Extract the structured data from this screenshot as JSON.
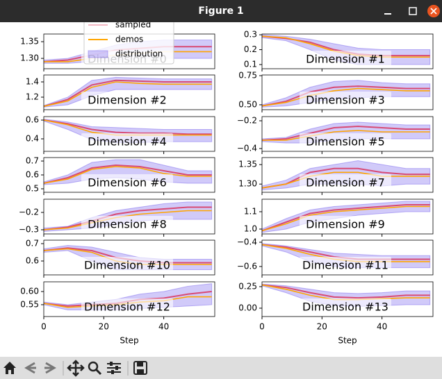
{
  "window": {
    "title": "Figure 1"
  },
  "chart_data": [
    {
      "type": "line",
      "title": "Dimension #0",
      "legend": "upper center",
      "x": [
        0,
        8,
        16,
        24,
        32,
        40,
        48,
        56
      ],
      "xlim": [
        0,
        57
      ],
      "xticks": [
        0,
        20,
        40
      ],
      "ylim": [
        1.269,
        1.373
      ],
      "yticks": [
        {
          "value": 1.3,
          "label": "1.30"
        },
        {
          "value": 1.35,
          "label": "1.35"
        }
      ],
      "series": [
        {
          "name": "sampled",
          "color": "#dc143c",
          "values": [
            1.29,
            1.295,
            1.31,
            1.325,
            1.33,
            1.335,
            1.335,
            1.335
          ]
        },
        {
          "name": "demos",
          "color": "#ffa500",
          "values": [
            1.29,
            1.29,
            1.3,
            1.31,
            1.315,
            1.32,
            1.32,
            1.32
          ]
        },
        {
          "name": "distribution",
          "color": "#7b68ee",
          "low": [
            1.285,
            1.285,
            1.29,
            1.295,
            1.3,
            1.3,
            1.3,
            1.3
          ],
          "high": [
            1.295,
            1.3,
            1.32,
            1.34,
            1.35,
            1.355,
            1.355,
            1.355
          ]
        }
      ]
    },
    {
      "type": "line",
      "title": "Dimension #1",
      "x": [
        0,
        8,
        16,
        24,
        32,
        40,
        48,
        56
      ],
      "xlim": [
        0,
        57
      ],
      "xticks": [
        0,
        20,
        40
      ],
      "ylim": [
        0.072,
        0.305
      ],
      "yticks": [
        0.1,
        0.2,
        0.3
      ],
      "series": [
        {
          "color": "#dc143c",
          "values": [
            0.29,
            0.275,
            0.25,
            0.2,
            0.17,
            0.16,
            0.16,
            0.16
          ]
        },
        {
          "color": "#ffa500",
          "values": [
            0.29,
            0.28,
            0.24,
            0.19,
            0.16,
            0.15,
            0.15,
            0.15
          ]
        },
        {
          "color": "#7b68ee",
          "low": [
            0.28,
            0.26,
            0.2,
            0.13,
            0.1,
            0.1,
            0.1,
            0.1
          ],
          "high": [
            0.3,
            0.29,
            0.27,
            0.24,
            0.21,
            0.2,
            0.2,
            0.2
          ]
        }
      ]
    },
    {
      "type": "line",
      "title": "Dimension #2",
      "x": [
        0,
        8,
        16,
        24,
        32,
        40,
        48,
        56
      ],
      "xlim": [
        0,
        57
      ],
      "xticks": [
        0,
        20,
        40
      ],
      "ylim": [
        1.036,
        1.491
      ],
      "yticks": [
        1.2,
        1.4
      ],
      "series": [
        {
          "color": "#dc143c",
          "values": [
            1.08,
            1.17,
            1.36,
            1.42,
            1.41,
            1.4,
            1.4,
            1.4
          ]
        },
        {
          "color": "#ffa500",
          "values": [
            1.08,
            1.15,
            1.33,
            1.4,
            1.38,
            1.37,
            1.37,
            1.37
          ]
        },
        {
          "color": "#7b68ee",
          "low": [
            1.07,
            1.1,
            1.22,
            1.3,
            1.3,
            1.3,
            1.3,
            1.3
          ],
          "high": [
            1.09,
            1.2,
            1.42,
            1.46,
            1.45,
            1.44,
            1.44,
            1.44
          ]
        }
      ]
    },
    {
      "type": "line",
      "title": "Dimension #3",
      "x": [
        0,
        8,
        16,
        24,
        32,
        40,
        48,
        56
      ],
      "xlim": [
        0,
        57
      ],
      "xticks": [
        0,
        20,
        40
      ],
      "ylim": [
        0.458,
        0.756
      ],
      "yticks": [
        {
          "value": 0.5,
          "label": "0.50"
        },
        0.75
      ],
      "series": [
        {
          "color": "#dc143c",
          "values": [
            0.49,
            0.53,
            0.61,
            0.65,
            0.66,
            0.65,
            0.64,
            0.64
          ]
        },
        {
          "color": "#ffa500",
          "values": [
            0.49,
            0.52,
            0.58,
            0.62,
            0.64,
            0.63,
            0.62,
            0.62
          ]
        },
        {
          "color": "#7b68ee",
          "low": [
            0.48,
            0.49,
            0.52,
            0.55,
            0.56,
            0.57,
            0.57,
            0.57
          ],
          "high": [
            0.5,
            0.56,
            0.65,
            0.7,
            0.71,
            0.69,
            0.68,
            0.68
          ]
        }
      ]
    },
    {
      "type": "line",
      "title": "Dimension #4",
      "x": [
        0,
        8,
        16,
        24,
        32,
        40,
        48,
        56
      ],
      "xlim": [
        0,
        57
      ],
      "xticks": [
        0,
        20,
        40
      ],
      "ylim": [
        0.267,
        0.637
      ],
      "yticks": [
        0.4,
        0.6
      ],
      "series": [
        {
          "color": "#dc143c",
          "values": [
            0.6,
            0.56,
            0.5,
            0.47,
            0.46,
            0.46,
            0.45,
            0.45
          ]
        },
        {
          "color": "#ffa500",
          "values": [
            0.6,
            0.55,
            0.47,
            0.44,
            0.44,
            0.44,
            0.44,
            0.44
          ]
        },
        {
          "color": "#7b68ee",
          "low": [
            0.59,
            0.5,
            0.39,
            0.36,
            0.36,
            0.37,
            0.37,
            0.37
          ],
          "high": [
            0.61,
            0.58,
            0.53,
            0.52,
            0.51,
            0.5,
            0.5,
            0.5
          ]
        }
      ]
    },
    {
      "type": "line",
      "title": "Dimension #5",
      "x": [
        0,
        8,
        16,
        24,
        32,
        40,
        48,
        56
      ],
      "xlim": [
        0,
        57
      ],
      "xticks": [
        0,
        20,
        40
      ],
      "ylim": [
        -0.42,
        -0.17
      ],
      "yticks": [
        {
          "value": -0.4,
          "label": "−0.4"
        },
        {
          "value": -0.2,
          "label": "−0.2"
        }
      ],
      "series": [
        {
          "color": "#dc143c",
          "values": [
            -0.34,
            -0.33,
            -0.29,
            -0.25,
            -0.24,
            -0.25,
            -0.26,
            -0.26
          ]
        },
        {
          "color": "#ffa500",
          "values": [
            -0.34,
            -0.34,
            -0.31,
            -0.28,
            -0.27,
            -0.28,
            -0.28,
            -0.28
          ]
        },
        {
          "color": "#7b68ee",
          "low": [
            -0.35,
            -0.36,
            -0.36,
            -0.34,
            -0.33,
            -0.33,
            -0.33,
            -0.33
          ],
          "high": [
            -0.33,
            -0.32,
            -0.26,
            -0.22,
            -0.21,
            -0.22,
            -0.23,
            -0.23
          ]
        }
      ]
    },
    {
      "type": "line",
      "title": "Dimension #6",
      "x": [
        0,
        8,
        16,
        24,
        32,
        40,
        48,
        56
      ],
      "xlim": [
        0,
        57
      ],
      "xticks": [
        0,
        20,
        40
      ],
      "ylim": [
        0.475,
        0.725
      ],
      "yticks": [
        0.5,
        0.6,
        0.7
      ],
      "series": [
        {
          "color": "#dc143c",
          "values": [
            0.54,
            0.58,
            0.65,
            0.67,
            0.66,
            0.63,
            0.6,
            0.6
          ]
        },
        {
          "color": "#ffa500",
          "values": [
            0.54,
            0.57,
            0.64,
            0.66,
            0.65,
            0.61,
            0.59,
            0.59
          ]
        },
        {
          "color": "#7b68ee",
          "low": [
            0.53,
            0.54,
            0.57,
            0.58,
            0.57,
            0.55,
            0.54,
            0.54
          ],
          "high": [
            0.55,
            0.6,
            0.69,
            0.71,
            0.71,
            0.67,
            0.63,
            0.63
          ]
        }
      ]
    },
    {
      "type": "line",
      "title": "Dimension #7",
      "x": [
        0,
        8,
        16,
        24,
        32,
        40,
        48,
        56
      ],
      "xlim": [
        0,
        57
      ],
      "xticks": [
        0,
        20,
        40
      ],
      "ylim": [
        1.279,
        1.368
      ],
      "yticks": [
        {
          "value": 1.3,
          "label": "1.30"
        },
        {
          "value": 1.35,
          "label": "1.35"
        }
      ],
      "series": [
        {
          "color": "#dc143c",
          "values": [
            1.29,
            1.3,
            1.33,
            1.34,
            1.34,
            1.33,
            1.325,
            1.325
          ]
        },
        {
          "color": "#ffa500",
          "values": [
            1.29,
            1.3,
            1.32,
            1.33,
            1.33,
            1.32,
            1.32,
            1.32
          ]
        },
        {
          "color": "#7b68ee",
          "low": [
            1.285,
            1.29,
            1.3,
            1.3,
            1.3,
            1.295,
            1.3,
            1.3
          ],
          "high": [
            1.295,
            1.31,
            1.34,
            1.35,
            1.36,
            1.35,
            1.34,
            1.34
          ]
        }
      ]
    },
    {
      "type": "line",
      "title": "Dimension #8",
      "x": [
        0,
        8,
        16,
        24,
        32,
        40,
        48,
        56
      ],
      "xlim": [
        0,
        57
      ],
      "xticks": [
        0,
        20,
        40
      ],
      "ylim": [
        -0.324,
        -0.124
      ],
      "yticks": [
        {
          "value": -0.3,
          "label": "−0.3"
        },
        {
          "value": -0.2,
          "label": "−0.2"
        }
      ],
      "series": [
        {
          "color": "#dc143c",
          "values": [
            -0.3,
            -0.285,
            -0.25,
            -0.21,
            -0.19,
            -0.18,
            -0.17,
            -0.17
          ]
        },
        {
          "color": "#ffa500",
          "values": [
            -0.3,
            -0.29,
            -0.26,
            -0.23,
            -0.21,
            -0.2,
            -0.19,
            -0.19
          ]
        },
        {
          "color": "#7b68ee",
          "low": [
            -0.31,
            -0.3,
            -0.29,
            -0.27,
            -0.25,
            -0.24,
            -0.24,
            -0.24
          ],
          "high": [
            -0.29,
            -0.28,
            -0.23,
            -0.19,
            -0.17,
            -0.15,
            -0.14,
            -0.14
          ]
        }
      ]
    },
    {
      "type": "line",
      "title": "Dimension #9",
      "x": [
        0,
        8,
        16,
        24,
        32,
        40,
        48,
        56
      ],
      "xlim": [
        0,
        57
      ],
      "xticks": [
        0,
        20,
        40
      ],
      "ylim": [
        0.972,
        1.172
      ],
      "yticks": [
        {
          "value": 1,
          "label": "1.0"
        },
        1.1
      ],
      "series": [
        {
          "color": "#dc143c",
          "values": [
            0.99,
            1.04,
            1.09,
            1.11,
            1.12,
            1.13,
            1.14,
            1.14
          ]
        },
        {
          "color": "#ffa500",
          "values": [
            0.99,
            1.03,
            1.08,
            1.1,
            1.11,
            1.12,
            1.13,
            1.13
          ]
        },
        {
          "color": "#7b68ee",
          "low": [
            0.98,
            1,
            1.04,
            1.06,
            1.08,
            1.09,
            1.1,
            1.1
          ],
          "high": [
            1,
            1.06,
            1.11,
            1.13,
            1.14,
            1.15,
            1.16,
            1.16
          ]
        }
      ]
    },
    {
      "type": "line",
      "title": "Dimension #10",
      "x": [
        0,
        8,
        16,
        24,
        32,
        40,
        48,
        56
      ],
      "xlim": [
        0,
        57
      ],
      "xticks": [
        0,
        20,
        40
      ],
      "ylim": [
        0.52,
        0.72
      ],
      "yticks": [
        0.6,
        0.7
      ],
      "series": [
        {
          "color": "#dc143c",
          "values": [
            0.66,
            0.675,
            0.66,
            0.62,
            0.6,
            0.59,
            0.59,
            0.59
          ]
        },
        {
          "color": "#ffa500",
          "values": [
            0.66,
            0.67,
            0.65,
            0.6,
            0.58,
            0.58,
            0.58,
            0.58
          ]
        },
        {
          "color": "#7b68ee",
          "low": [
            0.65,
            0.66,
            0.6,
            0.55,
            0.55,
            0.55,
            0.55,
            0.55
          ],
          "high": [
            0.67,
            0.69,
            0.68,
            0.65,
            0.62,
            0.61,
            0.61,
            0.61
          ]
        }
      ]
    },
    {
      "type": "line",
      "title": "Dimension #11",
      "x": [
        0,
        8,
        16,
        24,
        32,
        40,
        48,
        56
      ],
      "xlim": [
        0,
        57
      ],
      "xticks": [
        0,
        20,
        40
      ],
      "ylim": [
        -0.669,
        -0.383
      ],
      "yticks": [
        {
          "value": -0.6,
          "label": "−0.6"
        },
        {
          "value": -0.4,
          "label": "−0.4"
        }
      ],
      "series": [
        {
          "color": "#dc143c",
          "values": [
            -0.42,
            -0.44,
            -0.48,
            -0.52,
            -0.54,
            -0.54,
            -0.54,
            -0.54
          ]
        },
        {
          "color": "#ffa500",
          "values": [
            -0.42,
            -0.45,
            -0.5,
            -0.54,
            -0.56,
            -0.56,
            -0.56,
            -0.56
          ]
        },
        {
          "color": "#7b68ee",
          "low": [
            -0.43,
            -0.48,
            -0.56,
            -0.6,
            -0.61,
            -0.61,
            -0.61,
            -0.61
          ],
          "high": [
            -0.41,
            -0.43,
            -0.46,
            -0.49,
            -0.5,
            -0.51,
            -0.51,
            -0.51
          ]
        }
      ]
    },
    {
      "type": "line",
      "title": "Dimension #12",
      "xlabel": "Step",
      "x": [
        0,
        8,
        16,
        24,
        32,
        40,
        48,
        56
      ],
      "xlim": [
        0,
        57
      ],
      "xticks": [
        0,
        20,
        40
      ],
      "ylim": [
        0.505,
        0.637
      ],
      "yticks": [
        0.55,
        {
          "value": 0.6,
          "label": "0.60"
        }
      ],
      "series": [
        {
          "color": "#dc143c",
          "values": [
            0.555,
            0.545,
            0.55,
            0.555,
            0.57,
            0.575,
            0.59,
            0.6
          ]
        },
        {
          "color": "#ffa500",
          "values": [
            0.555,
            0.54,
            0.545,
            0.55,
            0.56,
            0.565,
            0.58,
            0.58
          ]
        },
        {
          "color": "#7b68ee",
          "low": [
            0.55,
            0.53,
            0.53,
            0.53,
            0.535,
            0.54,
            0.545,
            0.55
          ],
          "high": [
            0.56,
            0.55,
            0.56,
            0.57,
            0.59,
            0.6,
            0.62,
            0.63
          ]
        }
      ]
    },
    {
      "type": "line",
      "title": "Dimension #13",
      "xlabel": "Step",
      "x": [
        0,
        8,
        16,
        24,
        32,
        40,
        48,
        56
      ],
      "xlim": [
        0,
        57
      ],
      "xticks": [
        0,
        20,
        40
      ],
      "ylim": [
        -0.097,
        0.306
      ],
      "yticks": [
        {
          "value": 0,
          "label": "0.00"
        },
        0.25
      ],
      "series": [
        {
          "color": "#dc143c",
          "values": [
            0.27,
            0.24,
            0.18,
            0.13,
            0.12,
            0.13,
            0.15,
            0.15
          ]
        },
        {
          "color": "#ffa500",
          "values": [
            0.27,
            0.22,
            0.15,
            0.1,
            0.1,
            0.11,
            0.12,
            0.12
          ]
        },
        {
          "color": "#7b68ee",
          "low": [
            0.26,
            0.18,
            0.08,
            0.03,
            0.02,
            0.03,
            0.04,
            0.04
          ],
          "high": [
            0.28,
            0.26,
            0.22,
            0.18,
            0.17,
            0.18,
            0.2,
            0.2
          ]
        }
      ]
    }
  ]
}
